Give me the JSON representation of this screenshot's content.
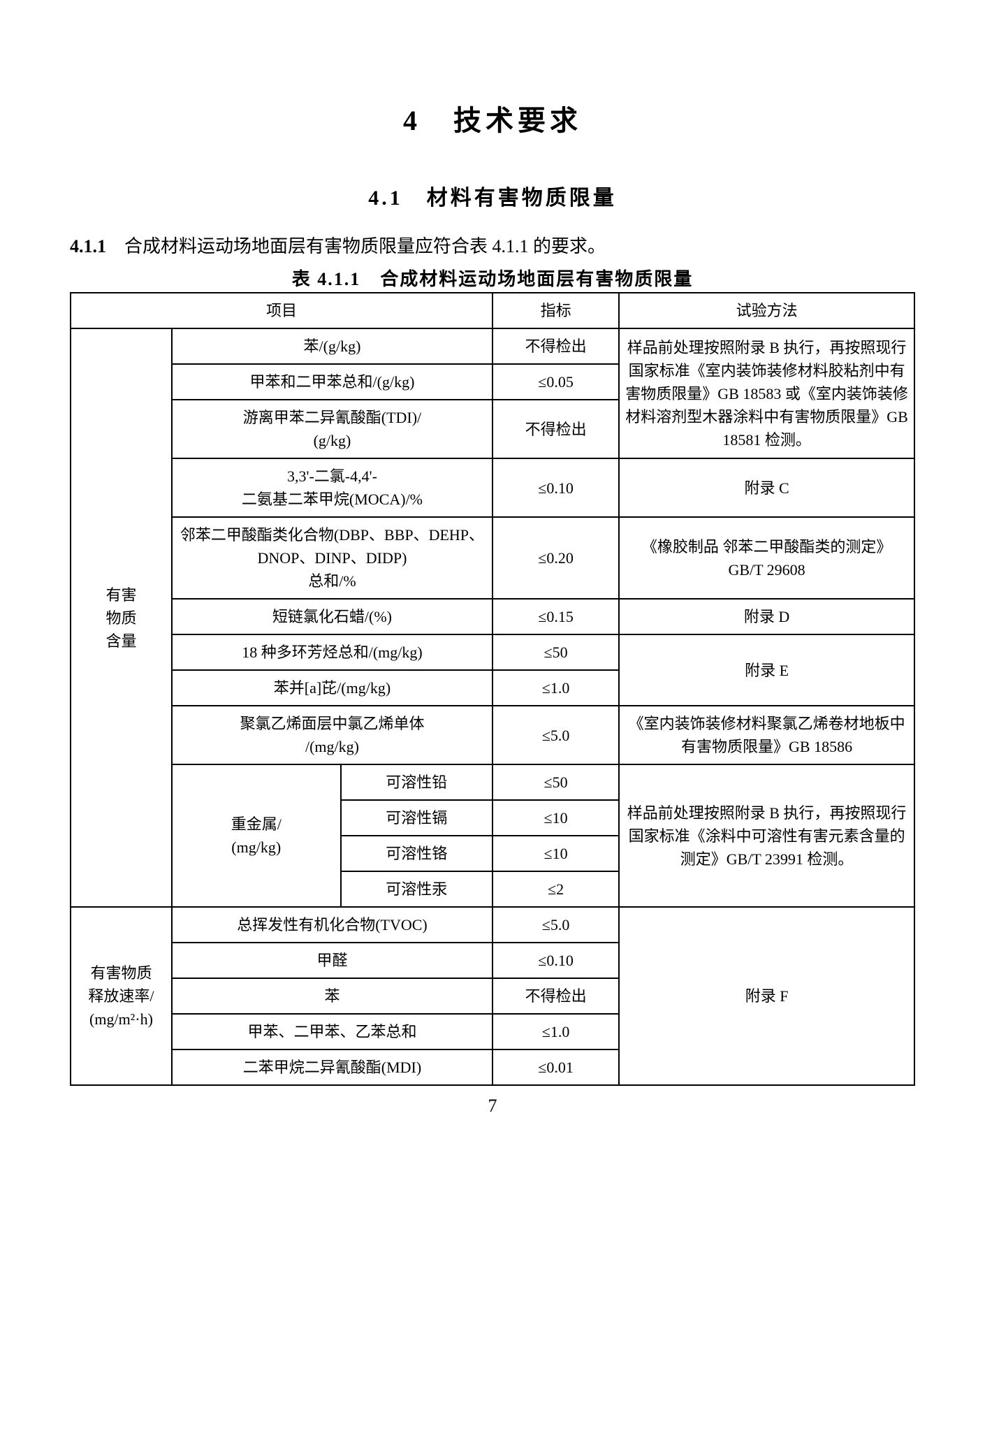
{
  "heading_main": "4　技术要求",
  "heading_sub": "4.1　材料有害物质限量",
  "para_411_num": "4.1.1",
  "para_411_text": "　合成材料运动场地面层有害物质限量应符合表 4.1.1 的要求。",
  "table_caption": "表 4.1.1　合成材料运动场地面层有害物质限量",
  "h_item": "项目",
  "h_index": "指标",
  "h_method": "试验方法",
  "rowhead1": "有害\n物质\n含量",
  "rowhead2": "有害物质\n释放速率/\n(mg/m²·h)",
  "r1_item": "苯/(g/kg)",
  "r1_idx": "不得检出",
  "method1": "样品前处理按照附录 B 执行，再按照现行国家标准《室内装饰装修材料胶粘剂中有害物质限量》GB 18583 或《室内装饰装修材料溶剂型木器涂料中有害物质限量》GB 18581 检测。",
  "r2_item": "甲苯和二甲苯总和/(g/kg)",
  "r2_idx": "≤0.05",
  "r3_item": "游离甲苯二异氰酸酯(TDI)/\n(g/kg)",
  "r3_idx": "不得检出",
  "r4_item": "3,3'-二氯-4,4'-\n二氨基二苯甲烷(MOCA)/%",
  "r4_idx": "≤0.10",
  "r4_method": "附录 C",
  "r5_item": "邻苯二甲酸酯类化合物(DBP、BBP、DEHP、DNOP、DINP、DIDP)\n总和/%",
  "r5_idx": "≤0.20",
  "r5_method": "《橡胶制品 邻苯二甲酸酯类的测定》\nGB/T 29608",
  "r6_item": "短链氯化石蜡/(%)",
  "r6_idx": "≤0.15",
  "r6_method": "附录 D",
  "r7_item": "18 种多环芳烃总和/(mg/kg)",
  "r7_idx": "≤50",
  "r78_method": "附录 E",
  "r8_item": "苯并[a]芘/(mg/kg)",
  "r8_idx": "≤1.0",
  "r9_item": "聚氯乙烯面层中氯乙烯单体\n/(mg/kg)",
  "r9_idx": "≤5.0",
  "r9_method": "《室内装饰装修材料聚氯乙烯卷材地板中有害物质限量》GB 18586",
  "r10_group": "重金属/\n(mg/kg)",
  "r10a_sub": "可溶性铅",
  "r10a_idx": "≤50",
  "r10b_sub": "可溶性镉",
  "r10b_idx": "≤10",
  "r10c_sub": "可溶性铬",
  "r10c_idx": "≤10",
  "r10d_sub": "可溶性汞",
  "r10d_idx": "≤2",
  "r10_method": "样品前处理按照附录 B 执行，再按照现行国家标准《涂料中可溶性有害元素含量的测定》GB/T 23991 检测。",
  "r11_item": "总挥发性有机化合物(TVOC)",
  "r11_idx": "≤5.0",
  "r12_item": "甲醛",
  "r12_idx": "≤0.10",
  "r13_item": "苯",
  "r13_idx": "不得检出",
  "r14_item": "甲苯、二甲苯、乙苯总和",
  "r14_idx": "≤1.0",
  "r15_item": "二苯甲烷二异氰酸酯(MDI)",
  "r15_idx": "≤0.01",
  "method_f": "附录 F",
  "pagenum": "7"
}
